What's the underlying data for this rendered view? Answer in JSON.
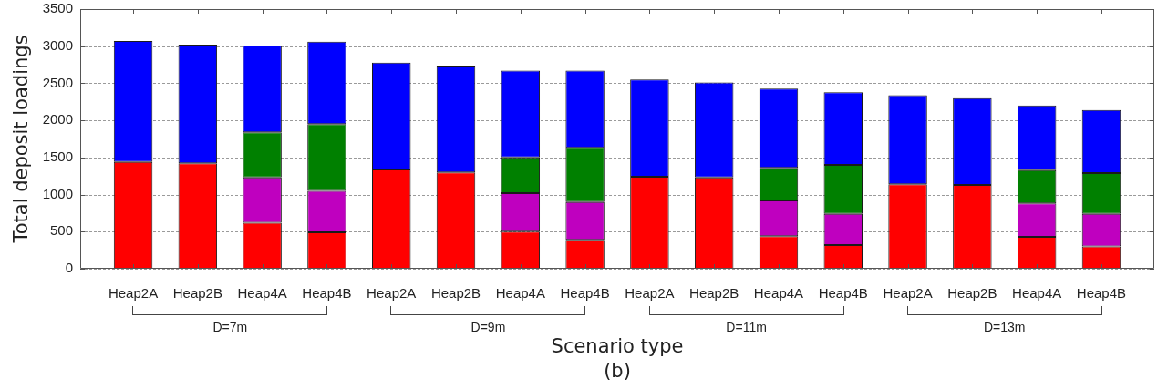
{
  "chart_data": {
    "type": "bar",
    "stacked": true,
    "title": "(b)",
    "xlabel": "Scenario type",
    "ylabel": "Total deposit loadings",
    "annotations": [
      "D=7m",
      "D=9m",
      "D=11m",
      "D=13m"
    ],
    "categories": [
      "Heap2A",
      "Heap2B",
      "Heap4A",
      "Heap4B",
      "Heap2A",
      "Heap2B",
      "Heap4A",
      "Heap4B",
      "Heap2A",
      "Heap2B",
      "Heap4A",
      "Heap4B",
      "Heap2A",
      "Heap2B",
      "Heap4A",
      "Heap4B"
    ],
    "series": [
      {
        "color": "#ff0000",
        "values": [
          1440,
          1420,
          620,
          490,
          1340,
          1300,
          500,
          390,
          1240,
          1230,
          440,
          320,
          1140,
          1130,
          430,
          300
        ]
      },
      {
        "color": "#bf00bf",
        "values": [
          null,
          null,
          610,
          560,
          null,
          null,
          520,
          510,
          null,
          null,
          480,
          420,
          null,
          null,
          450,
          440
        ]
      },
      {
        "color": "#008000",
        "values": [
          null,
          null,
          610,
          900,
          null,
          null,
          480,
          730,
          null,
          null,
          440,
          660,
          null,
          null,
          450,
          550
        ]
      },
      {
        "color": "#0000ff",
        "values": [
          1630,
          1600,
          1170,
          1110,
          1440,
          1440,
          1170,
          1040,
          1310,
          1280,
          1070,
          980,
          1200,
          1170,
          870,
          850
        ]
      }
    ],
    "ylim": [
      0,
      3500
    ],
    "yticks": [
      0,
      500,
      1000,
      1500,
      2000,
      2500,
      3000,
      3500
    ],
    "grid": "y"
  }
}
